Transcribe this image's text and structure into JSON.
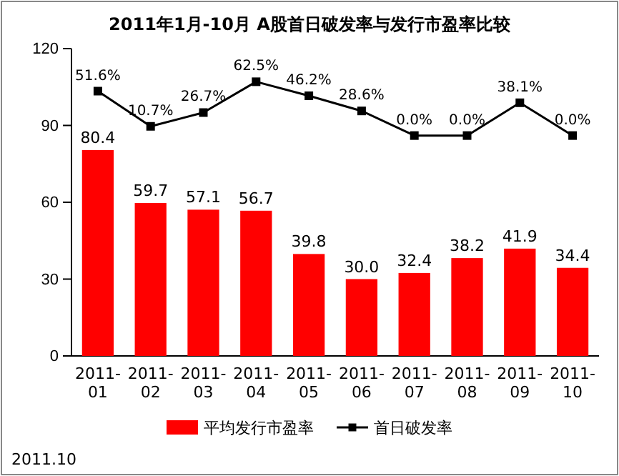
{
  "chart_data": {
    "type": "bar",
    "title": "2011年1月-10月 A股首日破发率与发行市盈率比较",
    "categories": [
      "2011-01",
      "2011-02",
      "2011-03",
      "2011-04",
      "2011-05",
      "2011-06",
      "2011-07",
      "2011-08",
      "2011-09",
      "2011-10"
    ],
    "series": [
      {
        "name": "平均发行市盈率",
        "color": "#ff0000",
        "values": [
          80.4,
          59.7,
          57.1,
          56.7,
          39.8,
          30.0,
          32.4,
          38.2,
          41.9,
          34.4
        ],
        "value_labels": [
          "80.4",
          "59.7",
          "57.1",
          "56.7",
          "39.8",
          "30.0",
          "32.4",
          "38.2",
          "41.9",
          "34.4"
        ]
      },
      {
        "name": "首日破发率",
        "type": "line",
        "axis": "y2",
        "color": "#000000",
        "marker": "square",
        "values": [
          51.6,
          10.7,
          26.7,
          62.5,
          46.2,
          28.6,
          0.0,
          0.0,
          38.1,
          0.0
        ],
        "value_labels": [
          "51.6%",
          "10.7%",
          "26.7%",
          "62.5%",
          "46.2%",
          "28.6%",
          "0.0%",
          "0.0%",
          "38.1%",
          "0.0%"
        ]
      }
    ],
    "ylim": [
      0,
      120
    ],
    "yticks": [
      0,
      30,
      60,
      90,
      120
    ],
    "y2lim": [
      -256,
      101
    ],
    "grid": false,
    "legend": "bottom",
    "annotations": [
      "2011.10"
    ]
  }
}
